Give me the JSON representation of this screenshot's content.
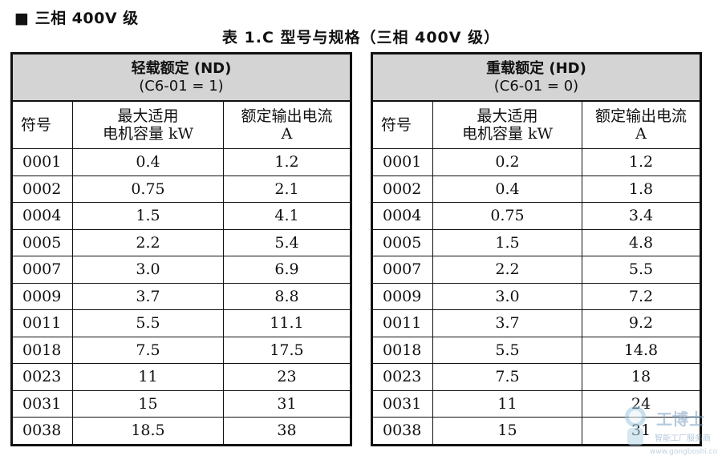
{
  "section_heading": "■ 三相 400V 级",
  "caption": "表 1.C  型号与规格（三相 400V 级）",
  "tables": [
    {
      "header_line1": "轻载额定 (ND)",
      "header_line2": "(C6-01 = 1)",
      "col_symbol": "符号",
      "col_motor_line1": "最大适用",
      "col_motor_line2": "电机容量 kW",
      "col_current_line1": "额定输出电流",
      "col_current_line2": "A",
      "rows": [
        {
          "model": "0001",
          "kw": "0.4",
          "amps": "1.2"
        },
        {
          "model": "0002",
          "kw": "0.75",
          "amps": "2.1"
        },
        {
          "model": "0004",
          "kw": "1.5",
          "amps": "4.1"
        },
        {
          "model": "0005",
          "kw": "2.2",
          "amps": "5.4"
        },
        {
          "model": "0007",
          "kw": "3.0",
          "amps": "6.9"
        },
        {
          "model": "0009",
          "kw": "3.7",
          "amps": "8.8"
        },
        {
          "model": "0011",
          "kw": "5.5",
          "amps": "11.1"
        },
        {
          "model": "0018",
          "kw": "7.5",
          "amps": "17.5"
        },
        {
          "model": "0023",
          "kw": "11",
          "amps": "23"
        },
        {
          "model": "0031",
          "kw": "15",
          "amps": "31"
        },
        {
          "model": "0038",
          "kw": "18.5",
          "amps": "38"
        }
      ]
    },
    {
      "header_line1": "重载额定 (HD)",
      "header_line2": "(C6-01 = 0)",
      "col_symbol": "符号",
      "col_motor_line1": "最大适用",
      "col_motor_line2": "电机容量 kW",
      "col_current_line1": "额定输出电流",
      "col_current_line2": "A",
      "rows": [
        {
          "model": "0001",
          "kw": "0.2",
          "amps": "1.2"
        },
        {
          "model": "0002",
          "kw": "0.4",
          "amps": "1.8"
        },
        {
          "model": "0004",
          "kw": "0.75",
          "amps": "3.4"
        },
        {
          "model": "0005",
          "kw": "1.5",
          "amps": "4.8"
        },
        {
          "model": "0007",
          "kw": "2.2",
          "amps": "5.5"
        },
        {
          "model": "0009",
          "kw": "3.0",
          "amps": "7.2"
        },
        {
          "model": "0011",
          "kw": "3.7",
          "amps": "9.2"
        },
        {
          "model": "0018",
          "kw": "5.5",
          "amps": "14.8"
        },
        {
          "model": "0023",
          "kw": "7.5",
          "amps": "18"
        },
        {
          "model": "0031",
          "kw": "11",
          "amps": "24"
        },
        {
          "model": "0038",
          "kw": "15",
          "amps": "31"
        }
      ]
    }
  ],
  "watermark": {
    "brand": "工博士",
    "tagline": "智能工厂服务商",
    "site": "www.gongboshi.com"
  }
}
